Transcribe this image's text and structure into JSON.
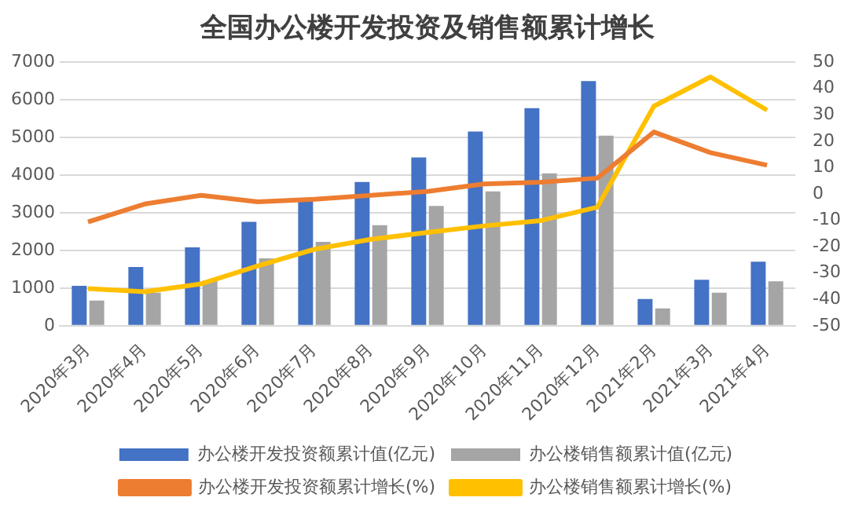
{
  "chart_data": {
    "type": "bar",
    "title": "全国办公楼开发投资及销售额累计增长",
    "categories": [
      "2020年3月",
      "2020年4月",
      "2020年5月",
      "2020年6月",
      "2020年7月",
      "2020年8月",
      "2020年9月",
      "2020年10月",
      "2020年11月",
      "2020年12月",
      "2021年2月",
      "2021年3月",
      "2021年4月"
    ],
    "series": [
      {
        "name": "办公楼开发投资额累计值(亿元)",
        "color": "#4472c4",
        "values": [
          1060,
          1560,
          2080,
          2760,
          3360,
          3820,
          4470,
          5160,
          5780,
          6500,
          710,
          1220,
          1700
        ]
      },
      {
        "name": "办公楼销售额累计值(亿元)",
        "color": "#a5a5a5",
        "values": [
          670,
          880,
          1200,
          1790,
          2230,
          2670,
          3180,
          3570,
          4050,
          5050,
          460,
          880,
          1180
        ]
      },
      {
        "name": "办公楼开发投资额累计增长(%)",
        "type": "line",
        "axis": "y2",
        "color": "#ed7d31",
        "values": [
          -10.6,
          -3.8,
          -0.5,
          -3,
          -2,
          -0.5,
          1,
          3.8,
          4.5,
          6,
          23.5,
          15.7,
          10.9
        ]
      },
      {
        "name": "办公楼销售额累计增长(%)",
        "type": "line",
        "axis": "y2",
        "color": "#ffc000",
        "values": [
          -35.9,
          -37.1,
          -34.1,
          -27.3,
          -21,
          -17.2,
          -14.6,
          -12.1,
          -10.1,
          -5,
          33.3,
          44.4,
          31.8
        ]
      }
    ],
    "ylim": [
      0,
      7000
    ],
    "yticks": [
      0,
      1000,
      2000,
      3000,
      4000,
      5000,
      6000,
      7000
    ],
    "y2lim": [
      -50,
      50
    ],
    "y2ticks": [
      -50,
      -40,
      -30,
      -20,
      -10,
      0,
      10,
      20,
      30,
      40,
      50
    ],
    "grid": "y",
    "legend": "bottom",
    "marker": "none",
    "line_style": "solid"
  }
}
